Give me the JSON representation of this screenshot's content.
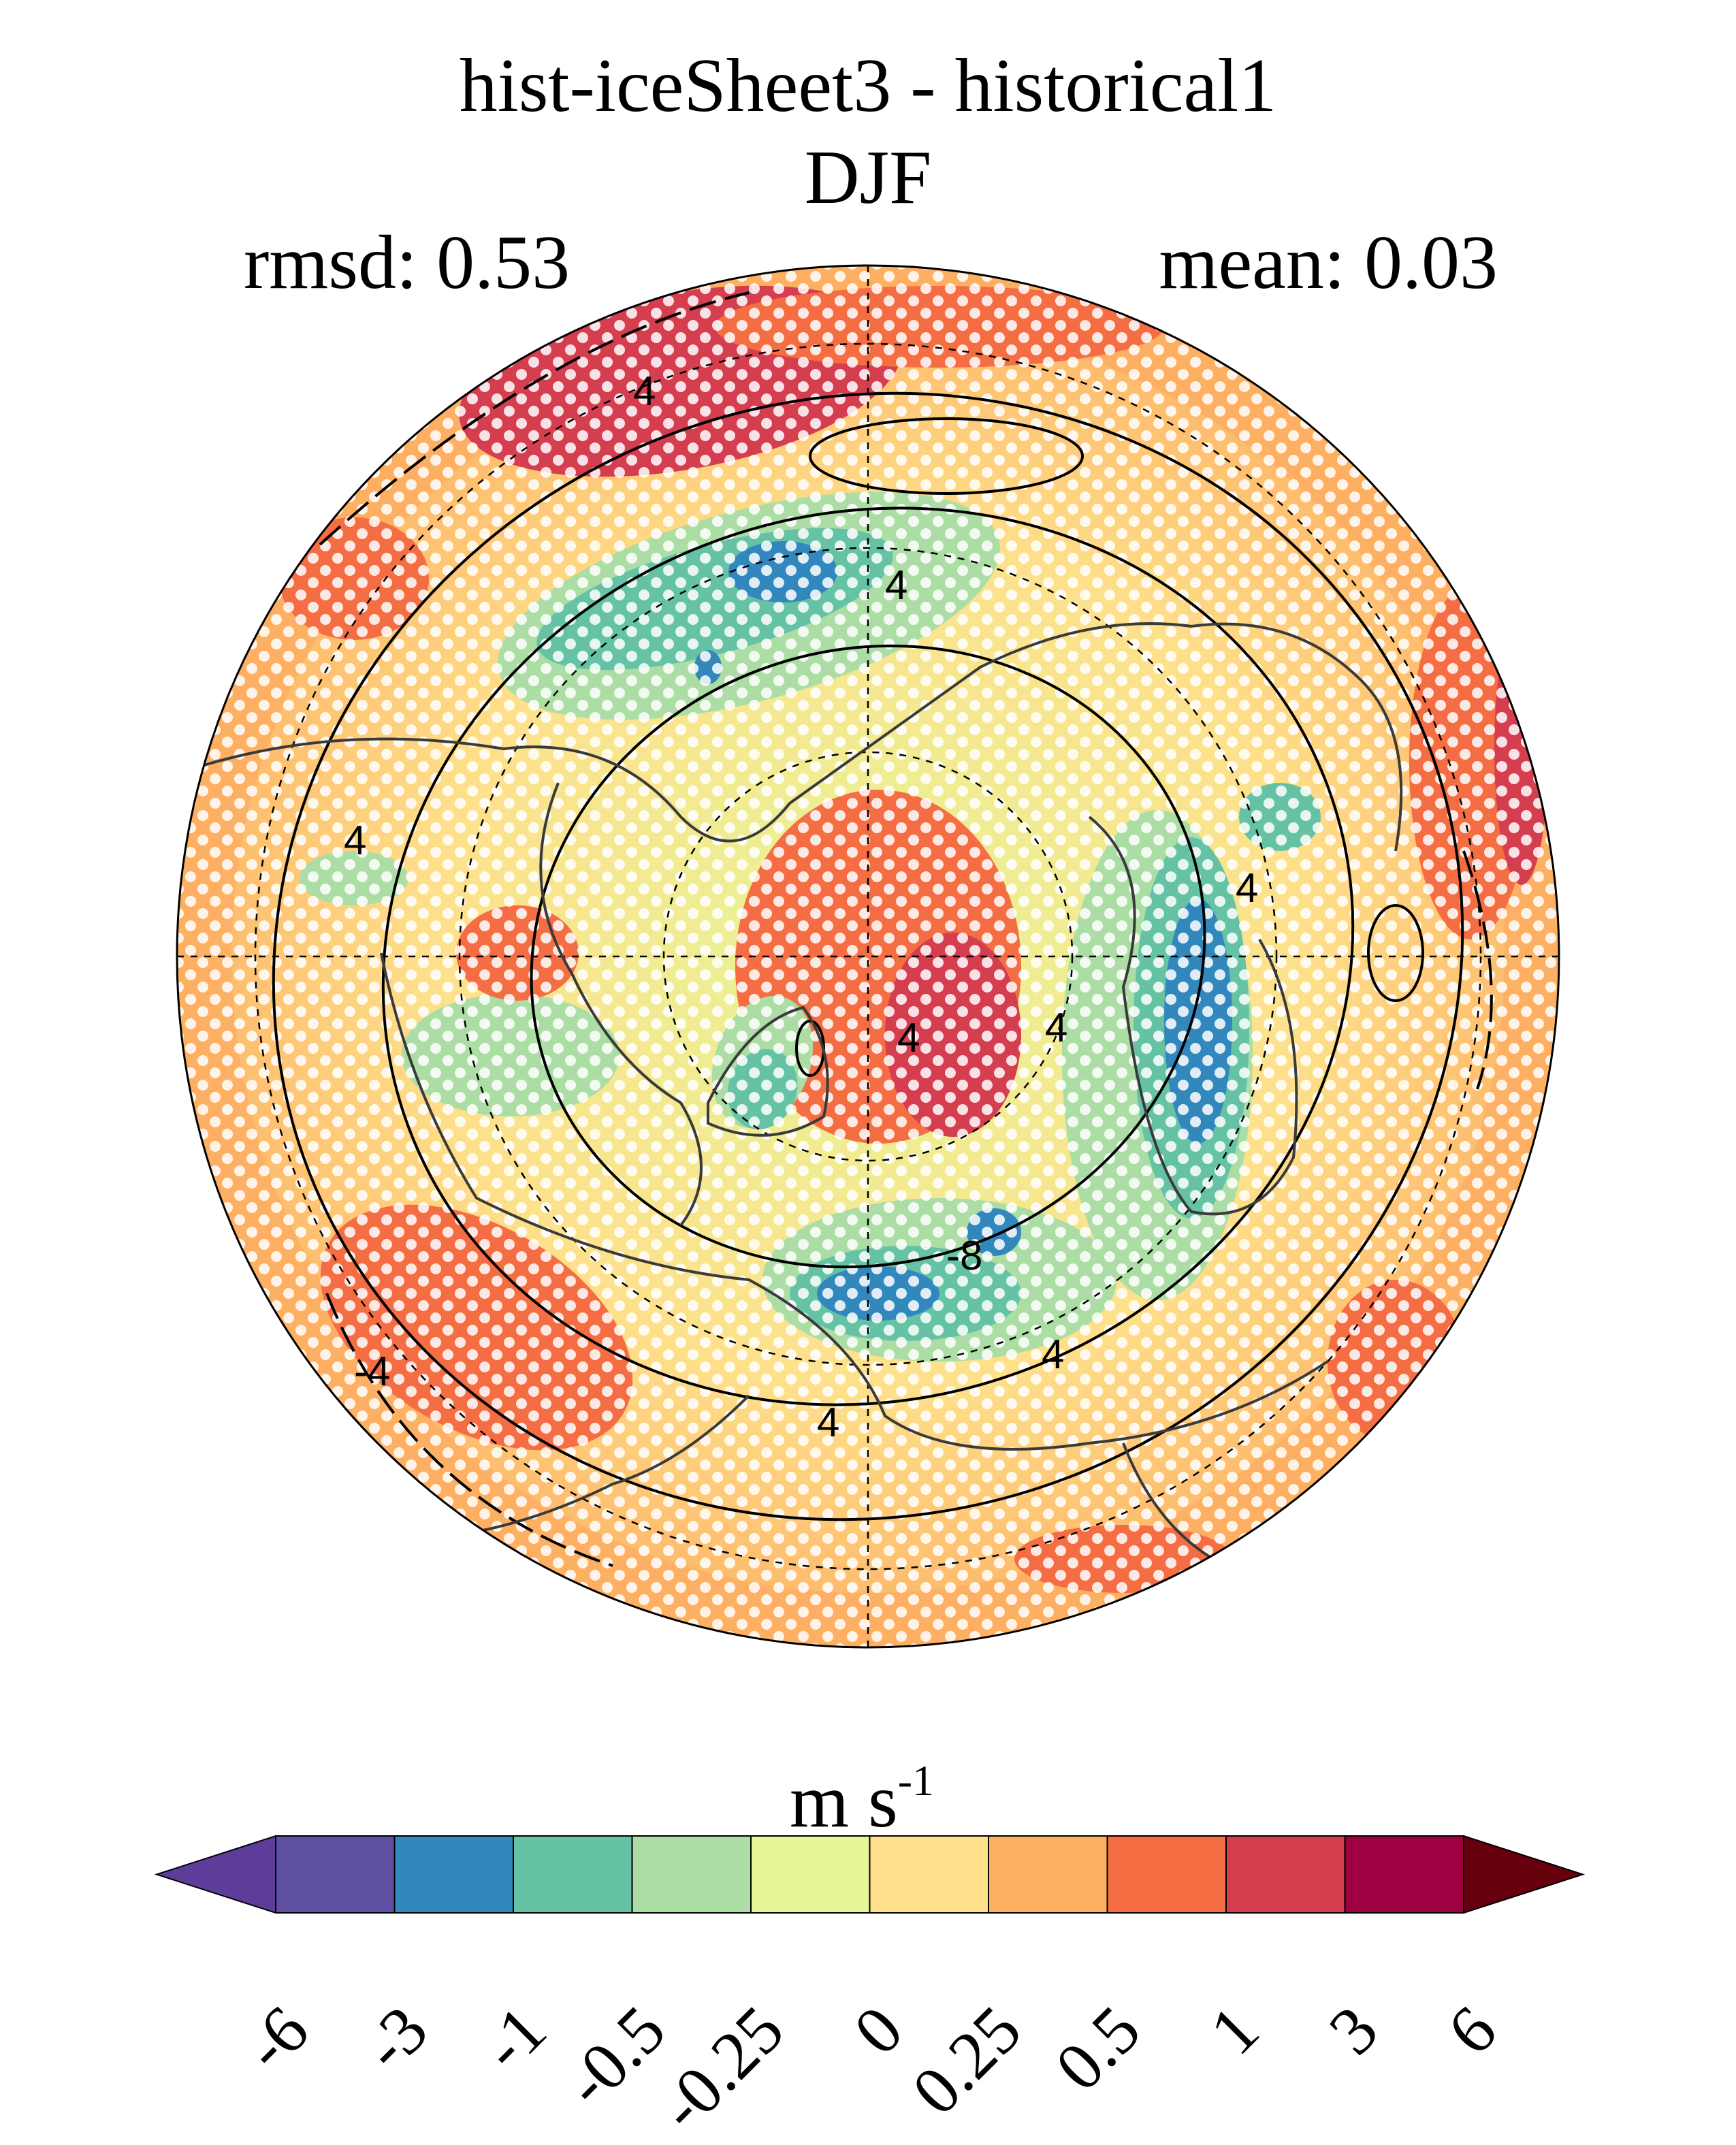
{
  "title": {
    "line1": "hist-iceSheet3 - historical1",
    "line2": "DJF"
  },
  "stats": {
    "rmsd": "rmsd: 0.53",
    "mean": "mean: 0.03"
  },
  "map": {
    "projection": "north-polar stereographic",
    "contour_labels": [
      "4",
      "4",
      "4",
      "4",
      "4",
      "4",
      "4",
      "-4",
      "-8",
      "4"
    ]
  },
  "colorbar": {
    "units_base": "m s",
    "units_exp": "-1",
    "ticks": [
      "-6",
      "-3",
      "-1",
      "-0.5",
      "-0.25",
      "0",
      "0.25",
      "0.5",
      "1",
      "3",
      "6"
    ],
    "colors": [
      "#5e3c99",
      "#5e4fa2",
      "#3288bd",
      "#66c2a5",
      "#abdda4",
      "#e6f598",
      "#fee08b",
      "#fdae61",
      "#f46d43",
      "#d53e4f",
      "#9e0142",
      "#67000d"
    ]
  }
}
